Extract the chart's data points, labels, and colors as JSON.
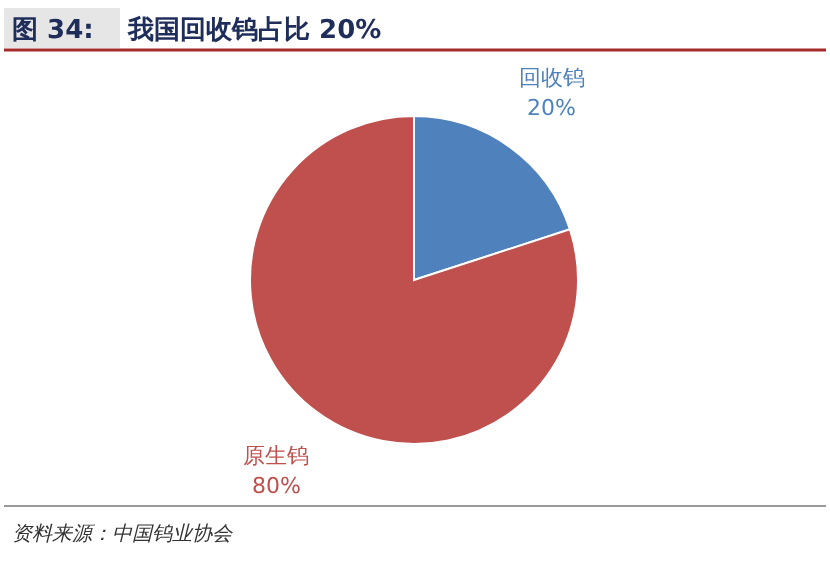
{
  "chart_data": {
    "type": "pie",
    "title": "图 34: 我国回收钨占比 20%",
    "categories": [
      "回收钨",
      "原生钨"
    ],
    "values": [
      20,
      80
    ],
    "colors": [
      "#4f81bd",
      "#c0504d"
    ],
    "value_labels": [
      "20%",
      "80%"
    ],
    "annotations": [
      "资料来源：中国钨业协会"
    ]
  }
}
